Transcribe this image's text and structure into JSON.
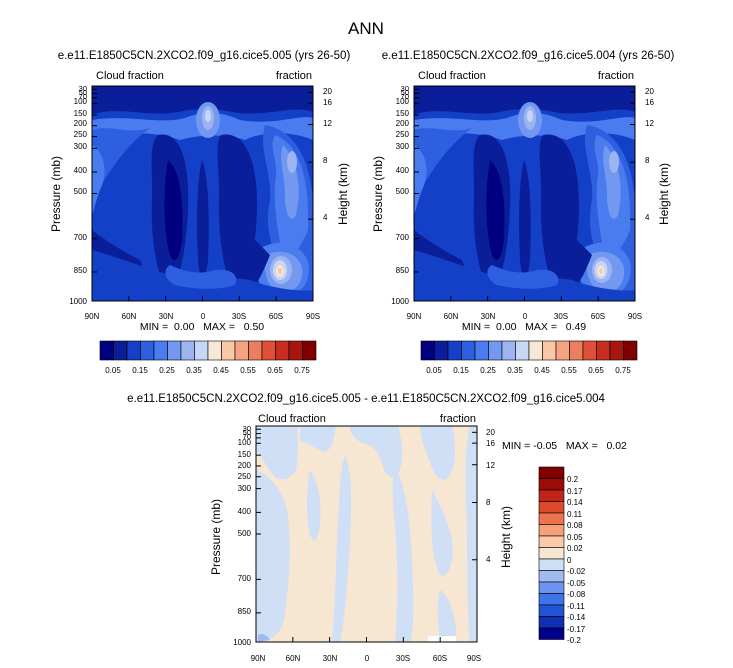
{
  "figure": {
    "title": "ANN"
  },
  "colors": {
    "seq": [
      "#000080",
      "#0a1e9a",
      "#1440c8",
      "#2e5fe0",
      "#4a7cf0",
      "#7298f0",
      "#9cb4f2",
      "#c6d6f4",
      "#f5e8d6",
      "#f9c8a8",
      "#f4a482",
      "#ec7d5e",
      "#e05038",
      "#c82c1c",
      "#a8140e",
      "#800000"
    ],
    "diff": [
      "#00008c",
      "#0f2fb4",
      "#2354d6",
      "#3f74e8",
      "#6d93ee",
      "#a0bbf2",
      "#cfe0f6",
      "#f7e6d2",
      "#fbcaa8",
      "#f6a078",
      "#ee7450",
      "#dc4a2c",
      "#c02618",
      "#9a0c08",
      "#800000"
    ]
  },
  "chart_data": [
    {
      "type": "heatmap",
      "title": "e.e11.E1850C5CN.2XCO2.f09_g16.cice5.005 (yrs 26-50)",
      "left_label": "Cloud fraction",
      "right_label": "fraction",
      "xlabel": "",
      "ylabel": "Pressure (mb)",
      "y2label": "Height (km)",
      "x_ticks": [
        "90N",
        "60N",
        "30N",
        "0",
        "30S",
        "60S",
        "90S"
      ],
      "y_ticks": [
        "30",
        "50",
        "70",
        "100",
        "150",
        "200",
        "250",
        "300",
        "400",
        "500",
        "700",
        "850",
        "1000"
      ],
      "y2_ticks": [
        "20",
        "16",
        "12",
        "8",
        "4"
      ],
      "ylim": [
        1000,
        30
      ],
      "xlim": [
        90,
        -90
      ],
      "min": "0.00",
      "max": "0.50",
      "stats": "MIN =  0.00   MAX =   0.50",
      "colorbar_labels": [
        "0.05",
        "0.15",
        "0.25",
        "0.35",
        "0.45",
        "0.55",
        "0.65",
        "0.75"
      ]
    },
    {
      "type": "heatmap",
      "title": "e.e11.E1850C5CN.2XCO2.f09_g16.cice5.004 (yrs 26-50)",
      "left_label": "Cloud fraction",
      "right_label": "fraction",
      "xlabel": "",
      "ylabel": "Pressure (mb)",
      "y2label": "Height (km)",
      "x_ticks": [
        "90N",
        "60N",
        "30N",
        "0",
        "30S",
        "60S",
        "90S"
      ],
      "y_ticks": [
        "30",
        "50",
        "70",
        "100",
        "150",
        "200",
        "250",
        "300",
        "400",
        "500",
        "700",
        "850",
        "1000"
      ],
      "y2_ticks": [
        "20",
        "16",
        "12",
        "8",
        "4"
      ],
      "ylim": [
        1000,
        30
      ],
      "xlim": [
        90,
        -90
      ],
      "min": "0.00",
      "max": "0.49",
      "stats": "MIN =  0.00   MAX =   0.49",
      "colorbar_labels": [
        "0.05",
        "0.15",
        "0.25",
        "0.35",
        "0.45",
        "0.55",
        "0.65",
        "0.75"
      ]
    },
    {
      "type": "heatmap",
      "title": "e.e11.E1850C5CN.2XCO2.f09_g16.cice5.005 - e.e11.E1850C5CN.2XCO2.f09_g16.cice5.004",
      "left_label": "Cloud fraction",
      "right_label": "fraction",
      "xlabel": "",
      "ylabel": "Pressure (mb)",
      "y2label": "Height (km)",
      "x_ticks": [
        "90N",
        "60N",
        "30N",
        "0",
        "30S",
        "60S",
        "90S"
      ],
      "y_ticks": [
        "30",
        "50",
        "70",
        "100",
        "150",
        "200",
        "250",
        "300",
        "400",
        "500",
        "700",
        "850",
        "1000"
      ],
      "y2_ticks": [
        "20",
        "16",
        "12",
        "8",
        "4"
      ],
      "ylim": [
        1000,
        30
      ],
      "xlim": [
        90,
        -90
      ],
      "min": "-0.05",
      "max": "0.02",
      "stats": "MIN = -0.05   MAX =   0.02",
      "colorbar_labels": [
        "0.2",
        "0.17",
        "0.14",
        "0.11",
        "0.08",
        "0.05",
        "0.02",
        "0",
        "-0.02",
        "-0.05",
        "-0.08",
        "-0.11",
        "-0.14",
        "-0.17",
        "-0.2"
      ]
    }
  ]
}
